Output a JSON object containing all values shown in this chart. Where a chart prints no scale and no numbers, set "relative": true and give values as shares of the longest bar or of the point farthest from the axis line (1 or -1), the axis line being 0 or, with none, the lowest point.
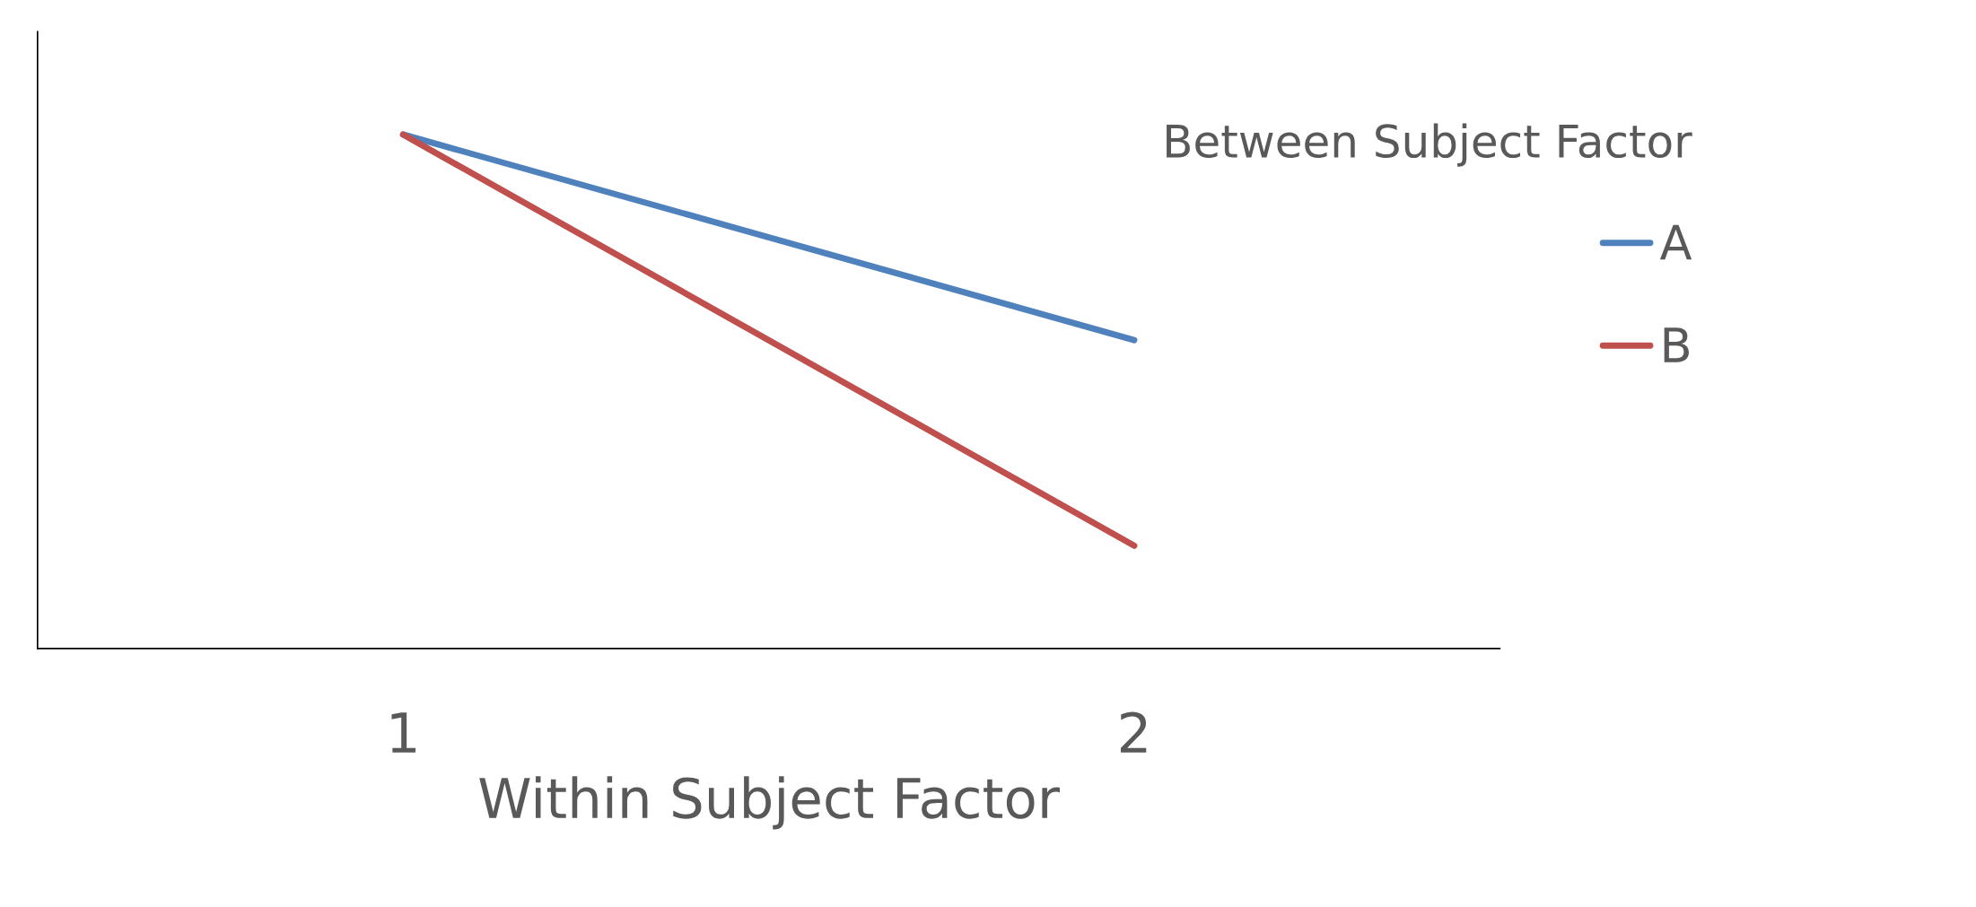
{
  "chart_data": {
    "type": "line",
    "xlabel": "Within Subject Factor",
    "legend_title": "Between Subject Factor",
    "categories": [
      "1",
      "2"
    ],
    "relative": true,
    "legend": "right",
    "grid": false,
    "marker": "none",
    "line_style": "solid",
    "series": [
      {
        "name": "A",
        "color": "#4f81bd",
        "values": [
          1,
          0.6
        ]
      },
      {
        "name": "B",
        "color": "#c0504d",
        "values": [
          1,
          0.2
        ]
      }
    ]
  }
}
